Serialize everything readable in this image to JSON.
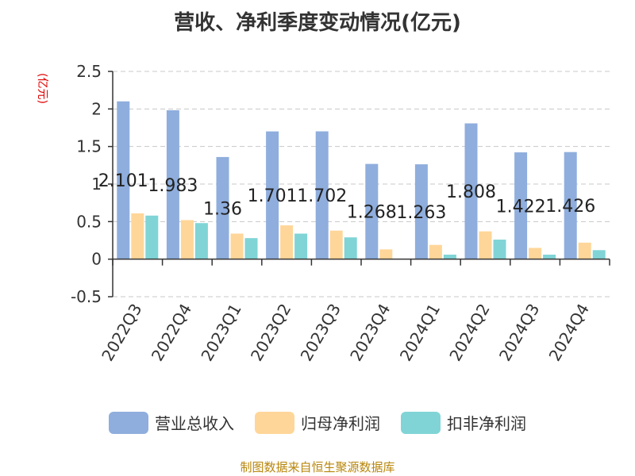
{
  "title": "营收、净利季度变动情况(亿元)",
  "unit_label": "(亿元)",
  "footer": "制图数据来自恒生聚源数据库",
  "legend": [
    {
      "label": "营业总收入",
      "color": "#8faedd"
    },
    {
      "label": "归母净利润",
      "color": "#ffd699"
    },
    {
      "label": "扣非净利润",
      "color": "#80d4d6"
    }
  ],
  "chart_data": {
    "type": "bar",
    "title": "营收、净利季度变动情况(亿元)",
    "ylabel": "(亿元)",
    "ylim": [
      -0.5,
      2.5
    ],
    "yticks": [
      -0.5,
      0,
      0.5,
      1,
      1.5,
      2,
      2.5
    ],
    "ytick_labels": [
      "-0.5",
      "0",
      "0.5",
      "1",
      "1.5",
      "2",
      "2.5"
    ],
    "grid": true,
    "legend_position": "bottom",
    "categories": [
      "2022Q3",
      "2022Q4",
      "2023Q1",
      "2023Q2",
      "2023Q3",
      "2023Q4",
      "2024Q1",
      "2024Q2",
      "2024Q3",
      "2024Q4"
    ],
    "series": [
      {
        "name": "营业总收入",
        "color": "#8faedd",
        "values": [
          2.101,
          1.983,
          1.36,
          1.701,
          1.702,
          1.268,
          1.263,
          1.808,
          1.422,
          1.426
        ],
        "labels": [
          "2.101",
          "1.983",
          "1.36",
          "1.701",
          "1.702",
          "1.268",
          "1.263",
          "1.808",
          "1.422",
          "1.426"
        ]
      },
      {
        "name": "归母净利润",
        "color": "#ffd699",
        "values": [
          0.61,
          0.52,
          0.34,
          0.45,
          0.38,
          0.13,
          0.19,
          0.37,
          0.15,
          0.22
        ]
      },
      {
        "name": "扣非净利润",
        "color": "#80d4d6",
        "values": [
          0.58,
          0.48,
          0.28,
          0.34,
          0.29,
          0.0,
          0.06,
          0.26,
          0.06,
          0.12
        ]
      }
    ]
  }
}
